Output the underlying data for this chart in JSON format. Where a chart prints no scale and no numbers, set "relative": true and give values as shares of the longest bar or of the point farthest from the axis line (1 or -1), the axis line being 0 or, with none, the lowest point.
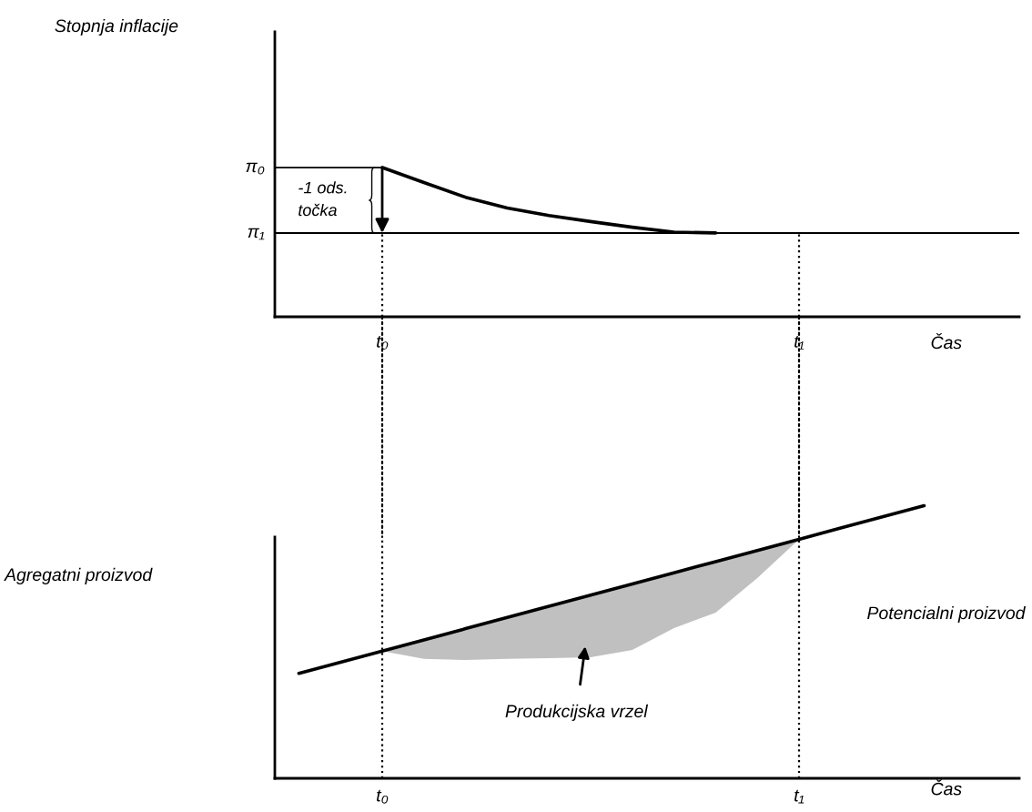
{
  "chart_data": [
    {
      "type": "line",
      "relative": true,
      "ylabel": "Stopnja inflacije",
      "xlabel": "Čas",
      "categories": [
        null,
        null,
        "t₀",
        null,
        null,
        null,
        null,
        null,
        null,
        null,
        null,
        null,
        "t₁",
        null,
        null,
        null,
        null,
        null
      ],
      "series": [
        {
          "values": [
            null,
            null,
            1,
            0.9,
            0.801,
            0.729,
            0.678,
            0.638,
            0.6,
            0.567,
            0.562,
            null,
            null,
            null,
            null,
            null,
            null,
            null
          ],
          "color": "#000000"
        }
      ],
      "ref_lines": [
        {
          "axis": "y",
          "value": 1,
          "label": "π₀",
          "color": "#000000",
          "line_style": "solid"
        },
        {
          "axis": "y",
          "value": 0.561,
          "label": "π₁",
          "color": "#000000",
          "line_style": "solid"
        },
        {
          "axis": "x",
          "value": "t₀",
          "color": "#000000",
          "line_style": "dotted"
        },
        {
          "axis": "x",
          "value": "t₁",
          "color": "#000000",
          "line_style": "dotted"
        }
      ],
      "annotations": [
        "-1 ods.\ntočka"
      ],
      "grid": false,
      "legend": false
    },
    {
      "type": "line",
      "relative": true,
      "ylabel": "Agregatni proizvod",
      "xlabel": "Čas",
      "tick_labels": "x",
      "categories": [
        null,
        null,
        "t₀",
        null,
        null,
        null,
        null,
        null,
        null,
        null,
        null,
        null,
        "t₁",
        null,
        null,
        null,
        null,
        null
      ],
      "series": [
        {
          "name": "Potencialni proizvod",
          "values": [
            0.385,
            0.426,
            0.467,
            0.508,
            0.549,
            0.59,
            0.631,
            0.672,
            0.713,
            0.754,
            0.795,
            0.836,
            0.877,
            0.918,
            0.959,
            1.0,
            null,
            null
          ],
          "color": "#000000",
          "lower": [
            null,
            null,
            0.467,
            0.438,
            0.434,
            0.438,
            0.441,
            0.444,
            0.471,
            0.551,
            0.608,
            0.735,
            0.877,
            null,
            null,
            null,
            null,
            null
          ],
          "upper": [
            null,
            null,
            0.467,
            0.508,
            0.549,
            0.59,
            0.631,
            0.672,
            0.713,
            0.754,
            0.795,
            0.836,
            0.877,
            null,
            null,
            null,
            null,
            null
          ]
        }
      ],
      "ref_lines": [
        {
          "axis": "x",
          "value": "t₀",
          "color": "#000000",
          "line_style": "dotted"
        },
        {
          "axis": "x",
          "value": "t₁",
          "color": "#000000",
          "line_style": "dotted"
        }
      ],
      "annotations": [
        "Produkcijska vrzel"
      ],
      "grid": false,
      "legend": false
    }
  ]
}
